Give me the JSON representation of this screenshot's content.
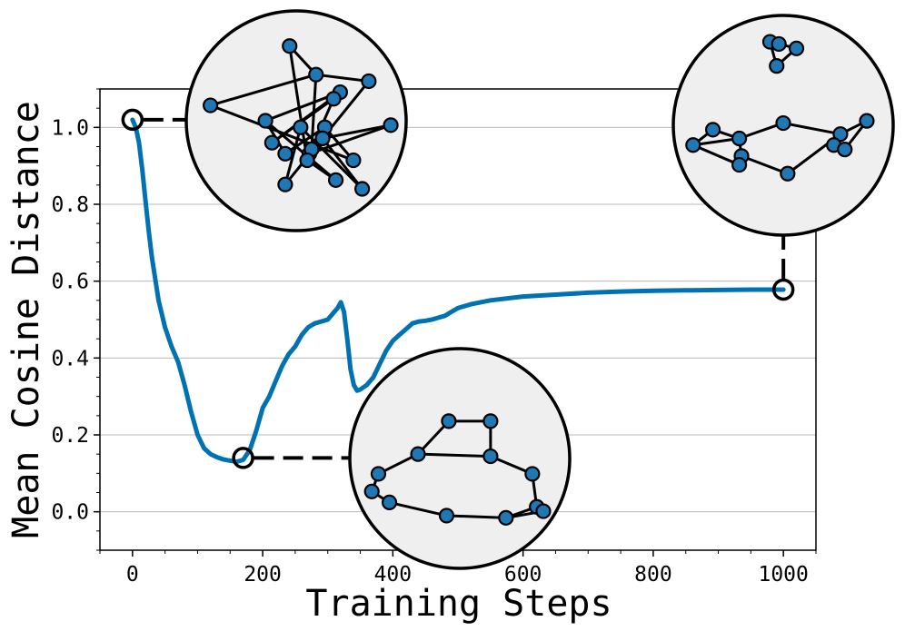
{
  "chart_data": {
    "type": "line",
    "title": "",
    "xlabel": "Training Steps",
    "ylabel": "Mean Cosine Distance",
    "xlim": [
      -50,
      1050
    ],
    "ylim": [
      -0.1,
      1.1
    ],
    "x_ticks": [
      0,
      200,
      400,
      600,
      800,
      1000
    ],
    "x_tick_labels": [
      "0",
      "200",
      "400",
      "600",
      "800",
      "1000"
    ],
    "y_ticks": [
      0.0,
      0.2,
      0.4,
      0.6,
      0.8,
      1.0
    ],
    "y_tick_labels": [
      "0.0",
      "0.2",
      "0.4",
      "0.6",
      "0.8",
      "1.0"
    ],
    "grid": "horizontal",
    "line_color": "#0072b2",
    "node_color": "#1f77b4",
    "inset_fill": "#efefef",
    "series": [
      {
        "x": [
          0,
          5,
          10,
          15,
          20,
          25,
          30,
          40,
          50,
          60,
          70,
          80,
          90,
          100,
          110,
          120,
          130,
          140,
          150,
          160,
          170,
          180,
          190,
          200,
          210,
          220,
          230,
          240,
          250,
          260,
          270,
          280,
          290,
          300,
          305,
          310,
          315,
          320,
          325,
          330,
          335,
          340,
          345,
          350,
          360,
          370,
          380,
          390,
          400,
          410,
          420,
          430,
          440,
          450,
          460,
          470,
          480,
          490,
          500,
          520,
          550,
          600,
          650,
          700,
          750,
          800,
          850,
          900,
          950,
          1000
        ],
        "y": [
          1.02,
          1.0,
          0.96,
          0.89,
          0.81,
          0.73,
          0.66,
          0.55,
          0.48,
          0.43,
          0.39,
          0.33,
          0.26,
          0.2,
          0.165,
          0.15,
          0.142,
          0.136,
          0.133,
          0.13,
          0.135,
          0.16,
          0.21,
          0.27,
          0.3,
          0.34,
          0.38,
          0.41,
          0.43,
          0.46,
          0.48,
          0.49,
          0.495,
          0.5,
          0.51,
          0.52,
          0.53,
          0.545,
          0.52,
          0.45,
          0.37,
          0.33,
          0.315,
          0.318,
          0.33,
          0.35,
          0.385,
          0.42,
          0.445,
          0.46,
          0.475,
          0.49,
          0.495,
          0.497,
          0.5,
          0.505,
          0.51,
          0.52,
          0.53,
          0.54,
          0.55,
          0.56,
          0.565,
          0.57,
          0.573,
          0.575,
          0.576,
          0.577,
          0.578,
          0.578
        ]
      }
    ],
    "annotations": [
      {
        "anchor": {
          "x": 0,
          "y": 1.02
        },
        "nodes": [
          [
            0.47,
            0.16
          ],
          [
            0.11,
            0.43
          ],
          [
            0.7,
            0.37
          ],
          [
            0.59,
            0.29
          ],
          [
            0.76,
            0.68
          ],
          [
            0.63,
            0.53
          ],
          [
            0.67,
            0.4
          ],
          [
            0.52,
            0.53
          ],
          [
            0.45,
            0.65
          ],
          [
            0.36,
            0.5
          ],
          [
            0.39,
            0.6
          ],
          [
            0.56,
            0.65
          ],
          [
            0.62,
            0.58
          ],
          [
            0.8,
            0.81
          ],
          [
            0.83,
            0.32
          ],
          [
            0.93,
            0.52
          ],
          [
            0.45,
            0.79
          ],
          [
            0.57,
            0.63
          ],
          [
            0.55,
            0.68
          ],
          [
            0.68,
            0.77
          ]
        ],
        "edges": [
          [
            0,
            3
          ],
          [
            3,
            1
          ],
          [
            1,
            4
          ],
          [
            4,
            5
          ],
          [
            5,
            8
          ],
          [
            8,
            9
          ],
          [
            9,
            2
          ],
          [
            2,
            10
          ],
          [
            10,
            6
          ],
          [
            6,
            11
          ],
          [
            11,
            15
          ],
          [
            15,
            12
          ],
          [
            12,
            13
          ],
          [
            13,
            7
          ],
          [
            7,
            16
          ],
          [
            16,
            14
          ],
          [
            14,
            3
          ],
          [
            3,
            17
          ],
          [
            17,
            18
          ],
          [
            18,
            19
          ],
          [
            19,
            9
          ],
          [
            0,
            18
          ]
        ]
      },
      {
        "anchor": {
          "x": 170,
          "y": 0.14
        },
        "nodes": [
          [
            0.45,
            0.33
          ],
          [
            0.64,
            0.33
          ],
          [
            0.31,
            0.48
          ],
          [
            0.64,
            0.49
          ],
          [
            0.13,
            0.57
          ],
          [
            0.83,
            0.57
          ],
          [
            0.1,
            0.65
          ],
          [
            0.18,
            0.7
          ],
          [
            0.85,
            0.72
          ],
          [
            0.44,
            0.76
          ],
          [
            0.71,
            0.77
          ],
          [
            0.88,
            0.74
          ]
        ],
        "edges": [
          [
            0,
            1
          ],
          [
            1,
            3
          ],
          [
            3,
            5
          ],
          [
            5,
            8
          ],
          [
            8,
            11
          ],
          [
            11,
            10
          ],
          [
            10,
            9
          ],
          [
            9,
            7
          ],
          [
            7,
            6
          ],
          [
            6,
            4
          ],
          [
            4,
            2
          ],
          [
            2,
            0
          ],
          [
            2,
            3
          ],
          [
            8,
            10
          ]
        ]
      },
      {
        "anchor": {
          "x": 1000,
          "y": 0.578
        },
        "nodes": [
          [
            0.44,
            0.12
          ],
          [
            0.48,
            0.13
          ],
          [
            0.56,
            0.15
          ],
          [
            0.47,
            0.23
          ],
          [
            0.5,
            0.49
          ],
          [
            0.18,
            0.52
          ],
          [
            0.88,
            0.48
          ],
          [
            0.3,
            0.56
          ],
          [
            0.76,
            0.54
          ],
          [
            0.09,
            0.59
          ],
          [
            0.73,
            0.59
          ],
          [
            0.31,
            0.64
          ],
          [
            0.3,
            0.68
          ],
          [
            0.52,
            0.72
          ],
          [
            0.78,
            0.61
          ]
        ],
        "edges": [
          [
            0,
            1
          ],
          [
            1,
            2
          ],
          [
            2,
            3
          ],
          [
            3,
            0
          ],
          [
            4,
            7
          ],
          [
            7,
            11
          ],
          [
            11,
            13
          ],
          [
            13,
            8
          ],
          [
            8,
            4
          ],
          [
            8,
            6
          ],
          [
            6,
            14
          ],
          [
            5,
            9
          ],
          [
            9,
            7
          ],
          [
            5,
            7
          ],
          [
            11,
            12
          ],
          [
            10,
            14
          ],
          [
            9,
            12
          ]
        ]
      }
    ]
  }
}
